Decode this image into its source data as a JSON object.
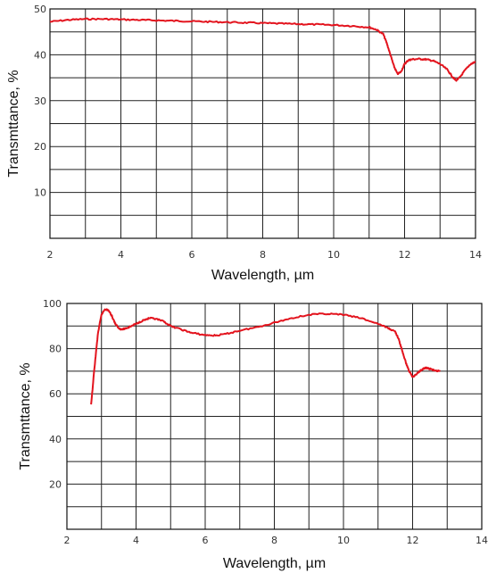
{
  "chart_data": [
    {
      "type": "line",
      "xlabel": "Wavelength, µm",
      "ylabel": "Transmttance, %",
      "xlim": [
        2,
        14
      ],
      "ylim": [
        0,
        50
      ],
      "xticks": [
        2,
        4,
        6,
        8,
        10,
        12,
        14
      ],
      "yticks": [
        10,
        20,
        30,
        40,
        50
      ],
      "x_grid_step": 1,
      "y_grid_step": 5,
      "grid": true,
      "line_color": "#e3141e",
      "series": [
        {
          "x": [
            2.0,
            2.5,
            3.0,
            3.5,
            4.0,
            4.5,
            5.0,
            5.5,
            6.0,
            6.5,
            7.0,
            7.5,
            8.0,
            8.5,
            9.0,
            9.5,
            10.0,
            10.5,
            11.0,
            11.2,
            11.4,
            11.5,
            11.6,
            11.7,
            11.8,
            11.9,
            12.0,
            12.1,
            12.2,
            12.4,
            12.6,
            12.8,
            13.0,
            13.2,
            13.35,
            13.45,
            13.55,
            13.7,
            13.85,
            14.0
          ],
          "y": [
            47.2,
            47.6,
            47.8,
            47.8,
            47.7,
            47.6,
            47.5,
            47.4,
            47.3,
            47.2,
            47.1,
            47.0,
            46.9,
            46.8,
            46.7,
            46.6,
            46.5,
            46.3,
            46.0,
            45.5,
            44.5,
            42.5,
            40.0,
            37.5,
            35.8,
            36.3,
            38.0,
            38.8,
            39.0,
            39.1,
            39.0,
            38.7,
            38.0,
            36.8,
            35.2,
            34.4,
            35.0,
            36.6,
            37.9,
            38.5
          ]
        }
      ]
    },
    {
      "type": "line",
      "xlabel": "Wavelength, µm",
      "ylabel": "Transmttance, %",
      "xlim": [
        2,
        14
      ],
      "ylim": [
        0,
        100
      ],
      "xticks": [
        2,
        4,
        6,
        8,
        10,
        12,
        14
      ],
      "yticks": [
        20,
        40,
        60,
        80,
        100
      ],
      "x_grid_step": 1,
      "y_grid_step": 10,
      "grid": true,
      "line_color": "#e3141e",
      "series": [
        {
          "x": [
            2.7,
            2.8,
            2.9,
            3.0,
            3.1,
            3.2,
            3.3,
            3.4,
            3.5,
            3.6,
            3.7,
            3.8,
            4.0,
            4.2,
            4.4,
            4.6,
            4.8,
            5.0,
            5.3,
            5.6,
            6.0,
            6.3,
            6.6,
            7.0,
            7.5,
            8.0,
            8.5,
            9.0,
            9.5,
            10.0,
            10.5,
            11.0,
            11.3,
            11.5,
            11.6,
            11.7,
            11.8,
            11.9,
            12.0,
            12.1,
            12.2,
            12.3,
            12.4,
            12.5,
            12.6,
            12.8
          ],
          "y": [
            55.0,
            72.0,
            87.0,
            95.0,
            97.5,
            97.0,
            94.5,
            91.0,
            89.0,
            88.5,
            89.0,
            89.5,
            91.0,
            92.5,
            93.5,
            93.0,
            92.0,
            90.0,
            88.5,
            87.0,
            86.0,
            85.8,
            86.5,
            88.0,
            89.5,
            91.5,
            93.5,
            95.0,
            95.5,
            95.0,
            93.5,
            91.0,
            89.0,
            87.5,
            84.0,
            79.0,
            74.0,
            70.0,
            67.5,
            68.5,
            70.0,
            71.0,
            71.5,
            71.0,
            70.5,
            70.0
          ]
        }
      ]
    }
  ]
}
